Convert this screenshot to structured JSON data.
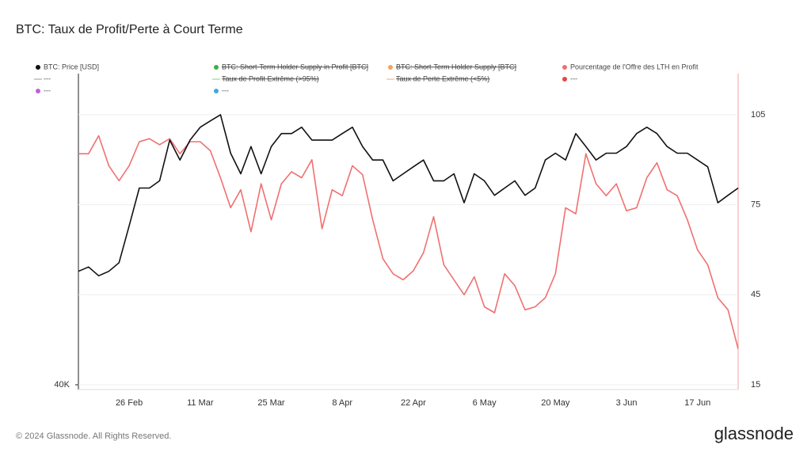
{
  "chart_data": {
    "type": "line",
    "title": "BTC: Taux de Profit/Perte à Court Terme",
    "footer": "© 2024 Glassnode. All Rights Reserved.",
    "brand": "glassnode",
    "categories": [
      null,
      null,
      null,
      null,
      null,
      "26 Feb",
      null,
      null,
      null,
      null,
      null,
      null,
      "11 Mar",
      null,
      null,
      null,
      null,
      null,
      null,
      "25 Mar",
      null,
      null,
      null,
      null,
      null,
      null,
      "8 Apr",
      null,
      null,
      null,
      null,
      null,
      null,
      "22 Apr",
      null,
      null,
      null,
      null,
      null,
      null,
      "6 May",
      null,
      null,
      null,
      null,
      null,
      null,
      "20 May",
      null,
      null,
      null,
      null,
      null,
      null,
      "3 Jun",
      null,
      null,
      null,
      null,
      null,
      null,
      "17 Jun",
      null,
      null,
      null,
      null
    ],
    "series": [
      {
        "name": "BTC: Price [USD]",
        "color": "#111111",
        "axis": "y",
        "values": [
          51500,
          52000,
          51000,
          51500,
          52500,
          57000,
          62000,
          62000,
          63000,
          69000,
          66000,
          69000,
          71000,
          72000,
          73000,
          67000,
          64000,
          68000,
          64000,
          68000,
          70000,
          70000,
          71000,
          69000,
          69000,
          69000,
          70000,
          71000,
          68000,
          66000,
          66000,
          63000,
          64000,
          65000,
          66000,
          63000,
          63000,
          64000,
          60000,
          64000,
          63000,
          61000,
          62000,
          63000,
          61000,
          62000,
          66000,
          67000,
          66000,
          70000,
          68000,
          66000,
          67000,
          67000,
          68000,
          70000,
          71000,
          70000,
          68000,
          67000,
          67000,
          66000,
          65000,
          60000,
          61000,
          62000
        ]
      },
      {
        "name": "Pourcentage de l'Offre des LTH en Profit",
        "color": "#f07070",
        "axis": "y2",
        "values": [
          92,
          92,
          98,
          88,
          83,
          88,
          96,
          97,
          95,
          97,
          92,
          96,
          96,
          93,
          84,
          74,
          80,
          66,
          82,
          70,
          82,
          86,
          84,
          90,
          67,
          80,
          78,
          88,
          85,
          70,
          57,
          52,
          50,
          53,
          59,
          71,
          55,
          50,
          45,
          51,
          41,
          39,
          52,
          48,
          40,
          41,
          44,
          52,
          74,
          72,
          92,
          82,
          78,
          82,
          73,
          74,
          84,
          89,
          80,
          78,
          70,
          60,
          55,
          44,
          40,
          27
        ]
      }
    ],
    "legend_extra": [
      {
        "name": "BTC: Short-Term Holder Supply in Profit [BTC]",
        "color": "#3cb043",
        "struck": true,
        "marker": "dot",
        "slot": 1
      },
      {
        "name": "BTC: Short-Term Holder Supply [BTC]",
        "color": "#f5a25d",
        "struck": true,
        "marker": "dot",
        "slot": 2
      },
      {
        "name": "---",
        "color": "#bbbbbb",
        "struck": false,
        "marker": "line",
        "slot": 4
      },
      {
        "name": "Taux de Profit Extrême (>95%)",
        "color": "#a8e0b0",
        "struck": true,
        "marker": "line",
        "slot": 5
      },
      {
        "name": "Taux de Perte Extrême (<5%)",
        "color": "#f5c6a0",
        "struck": true,
        "marker": "line",
        "slot": 6
      },
      {
        "name": "---",
        "color": "#e84545",
        "struck": false,
        "marker": "dot",
        "slot": 7
      },
      {
        "name": "---",
        "color": "#c060d8",
        "struck": false,
        "marker": "dot",
        "slot": 8
      },
      {
        "name": "---",
        "color": "#40a8e0",
        "struck": false,
        "marker": "dot",
        "slot": 9
      }
    ],
    "ylim": [
      40000,
      80000
    ],
    "ylog": true,
    "yticks": [
      {
        "value": 40000,
        "label": "40K"
      }
    ],
    "y2lim": [
      15,
      118.7
    ],
    "y2ticks": [
      15,
      45,
      75,
      105
    ],
    "grid": true
  }
}
